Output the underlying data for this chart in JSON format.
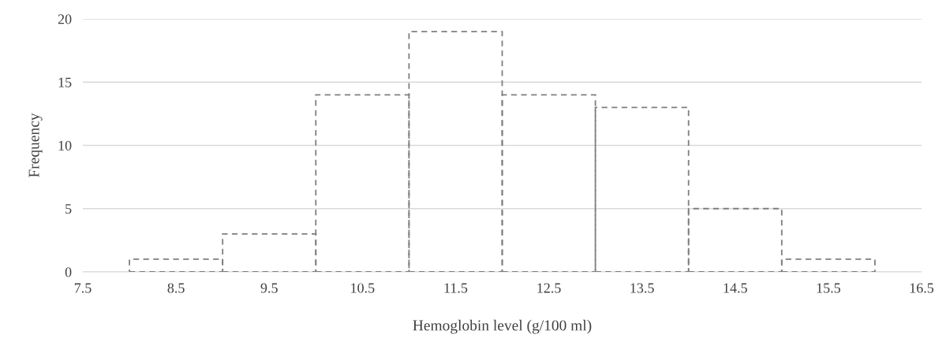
{
  "chart_data": {
    "type": "histogram",
    "xlabel": "Hemoglobin level (g/100 ml)",
    "ylabel": "Frequency",
    "bins": [
      8,
      9,
      10,
      11,
      12,
      13,
      14,
      15,
      16
    ],
    "values": [
      1,
      3,
      14,
      19,
      14,
      13,
      5,
      1
    ],
    "color": "#7f7f7f",
    "line_style": "dashed",
    "xlim": [
      7.5,
      16.5
    ],
    "xticks": [
      7.5,
      8.5,
      9.5,
      10.5,
      11.5,
      12.5,
      13.5,
      14.5,
      15.5,
      16.5
    ],
    "ylim": [
      0,
      20
    ],
    "yticks": [
      0,
      5,
      10,
      15,
      20
    ],
    "grid": "y"
  }
}
